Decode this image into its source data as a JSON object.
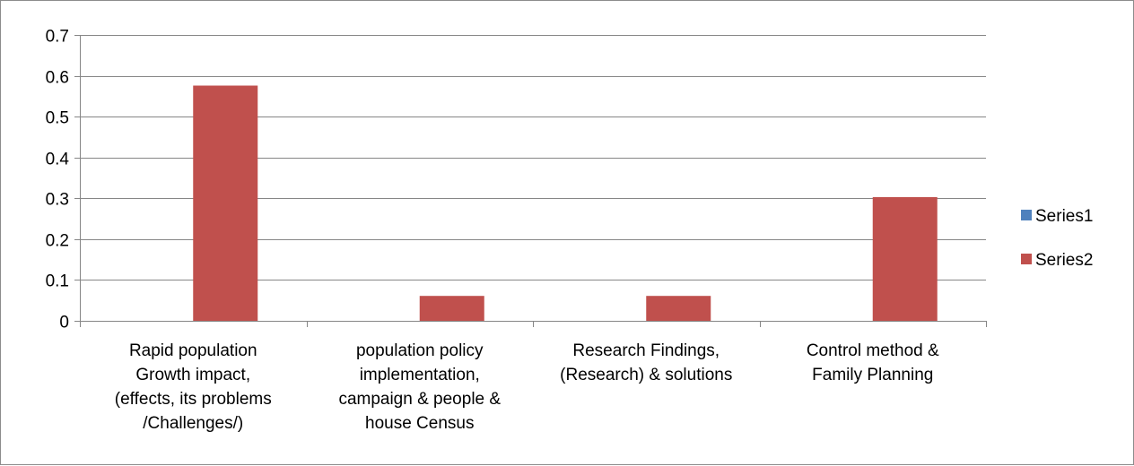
{
  "chart_data": {
    "type": "bar",
    "categories": [
      [
        "Rapid population",
        "Growth impact,",
        "(effects, its problems",
        "/Challenges/)"
      ],
      [
        "population policy",
        "implementation,",
        "campaign  & people &",
        "house Census"
      ],
      [
        "Research Findings,",
        "(Research) & solutions"
      ],
      [
        "Control method &",
        "Family  Planning"
      ]
    ],
    "series": [
      {
        "name": "Series1",
        "color": "#4f81bd",
        "values": [
          0,
          0,
          0,
          0
        ]
      },
      {
        "name": "Series2",
        "color": "#c0504d",
        "values": [
          0.576,
          0.061,
          0.061,
          0.303
        ]
      }
    ],
    "y_ticks": [
      "0",
      "0.1",
      "0.2",
      "0.3",
      "0.4",
      "0.5",
      "0.6",
      "0.7"
    ],
    "ylim": [
      0,
      0.7
    ],
    "grid": true,
    "legend_position": "right",
    "title": "",
    "xlabel": "",
    "ylabel": "",
    "colors": {
      "gridline": "#868686",
      "axis": "#868686",
      "frame": "#8c8c8c"
    }
  }
}
